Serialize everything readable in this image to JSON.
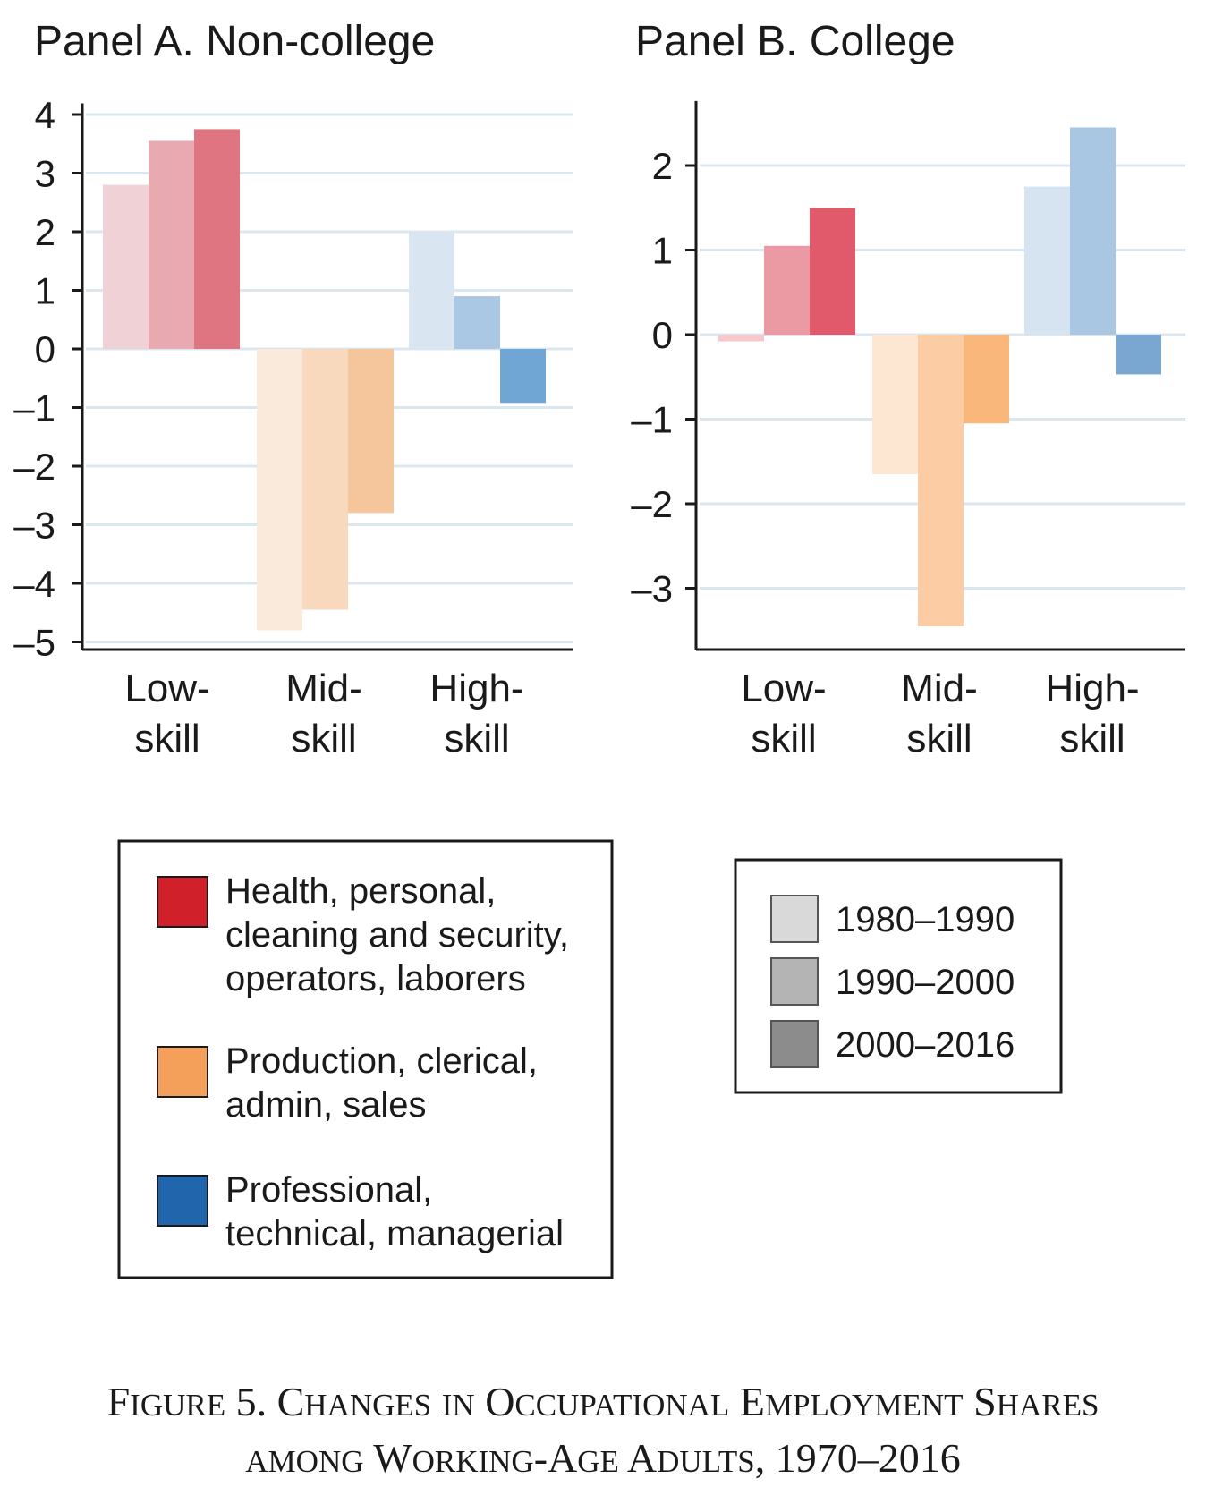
{
  "chart_data": [
    {
      "type": "bar",
      "title": "Panel A. Non-college",
      "categories": [
        "Low-skill",
        "Mid-skill",
        "High-skill"
      ],
      "category_lines": [
        [
          "Low-",
          "skill"
        ],
        [
          "Mid-",
          "skill"
        ],
        [
          "High-",
          "skill"
        ]
      ],
      "series": [
        {
          "name": "1980–1990",
          "values": [
            2.8,
            -4.8,
            2.0
          ]
        },
        {
          "name": "1990–2000",
          "values": [
            3.55,
            -4.45,
            0.9
          ]
        },
        {
          "name": "2000–2016",
          "values": [
            3.75,
            -2.8,
            -0.92
          ]
        }
      ],
      "ylim": [
        -5.1,
        4.1
      ],
      "yticks": [
        4,
        3,
        2,
        1,
        0,
        -1,
        -2,
        -3,
        -4,
        -5
      ],
      "ytick_labels": [
        "4",
        "3",
        "2",
        "1",
        "0",
        "–1",
        "–2",
        "–3",
        "–4",
        "–5"
      ],
      "grid": true
    },
    {
      "type": "bar",
      "title": "Panel B. College",
      "categories": [
        "Low-skill",
        "Mid-skill",
        "High-skill"
      ],
      "category_lines": [
        [
          "Low-",
          "skill"
        ],
        [
          "Mid-",
          "skill"
        ],
        [
          "High-",
          "skill"
        ]
      ],
      "series": [
        {
          "name": "1980–1990",
          "values": [
            -0.08,
            -1.65,
            1.75
          ]
        },
        {
          "name": "1990–2000",
          "values": [
            1.05,
            -3.45,
            2.45
          ]
        },
        {
          "name": "2000–2016",
          "values": [
            1.5,
            -1.05,
            -0.47
          ]
        }
      ],
      "ylim": [
        -3.7,
        2.7
      ],
      "yticks": [
        2,
        1,
        0,
        -1,
        -2,
        -3
      ],
      "ytick_labels": [
        "2",
        "1",
        "0",
        "–1",
        "–2",
        "–3"
      ],
      "grid": true
    }
  ],
  "legend_groups": {
    "items": [
      {
        "lines": [
          "Health, personal,",
          "cleaning and security,",
          "operators, laborers"
        ],
        "color": "#d0202a"
      },
      {
        "lines": [
          "Production, clerical,",
          "admin, sales"
        ],
        "color": "#f5a05a"
      },
      {
        "lines": [
          "Professional,",
          "technical, managerial"
        ],
        "color": "#2166ac"
      }
    ]
  },
  "legend_periods": {
    "items": [
      {
        "label": "1980–1990",
        "color": "#d9d9d9"
      },
      {
        "label": "1990–2000",
        "color": "#b4b4b4"
      },
      {
        "label": "2000–2016",
        "color": "#8c8c8c"
      }
    ]
  },
  "bar_colors": [
    [
      "#f0d2d6",
      "#e8a9b1",
      "#de7580"
    ],
    [
      "#faeadb",
      "#f8d9bd",
      "#f5c59c"
    ],
    [
      "#d9e6f2",
      "#aac7e4",
      "#6fa6d4"
    ]
  ],
  "bar_colors_college": [
    [
      "#f4c8cd",
      "#eb9aa4",
      "#e05a6b"
    ],
    [
      "#fde6d2",
      "#fccda4",
      "#fab77b"
    ],
    [
      "#d6e4f1",
      "#a9c6e2",
      "#7aa7d2"
    ]
  ],
  "caption": {
    "line1": "Figure 5. Changes in Occupational Employment Shares",
    "line2": "among Working-Age Adults, 1970–2016"
  }
}
